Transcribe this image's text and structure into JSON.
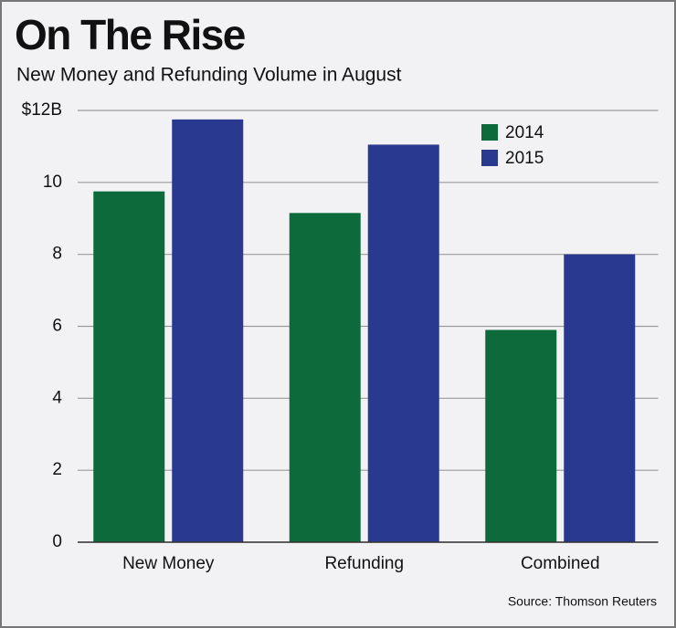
{
  "chart_data": {
    "type": "bar",
    "title": "On The Rise",
    "subtitle": "New Money and Refunding Volume in August",
    "source": "Source: Thomson Reuters",
    "categories": [
      "New Money",
      "Refunding",
      "Combined"
    ],
    "series": [
      {
        "name": "2014",
        "color": "#0d6b3b",
        "values": [
          9.75,
          9.15,
          5.9
        ]
      },
      {
        "name": "2015",
        "color": "#2a3990",
        "values": [
          11.75,
          11.05,
          8.0
        ]
      }
    ],
    "ylim": [
      0,
      12
    ],
    "yticks": [
      0,
      2,
      4,
      6,
      8,
      10,
      {
        "value": 12,
        "label": "$12B"
      }
    ],
    "grid": true,
    "legend": "top right"
  }
}
